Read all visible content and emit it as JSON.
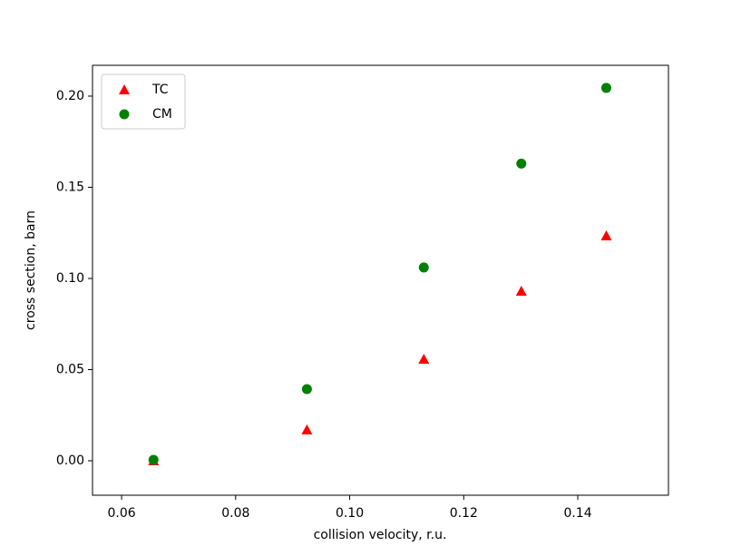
{
  "chart_data": {
    "type": "scatter",
    "x_label": "collision velocity, r.u.",
    "y_label": "cross section, barn",
    "xlim": [
      0.0549,
      0.1559
    ],
    "ylim": [
      -0.0189,
      0.2169
    ],
    "xticks": [
      0.06,
      0.08,
      {
        "value": 0.1,
        "label": "0.10"
      },
      0.12,
      0.14
    ],
    "yticks": [
      {
        "value": 0,
        "label": "0.00"
      },
      0.05,
      {
        "value": 0.1,
        "label": "0.10"
      },
      0.15,
      {
        "value": 0.2,
        "label": "0.20"
      }
    ],
    "legend": "upper left",
    "series": [
      {
        "name": "TC",
        "color": "#ff0000",
        "marker": "triangle",
        "x": [
          0.0656,
          0.0925,
          0.113,
          0.1301,
          0.145
        ],
        "values": [
          0.0,
          0.017,
          0.0557,
          0.093,
          0.1234
        ]
      },
      {
        "name": "CM",
        "color": "#008000",
        "marker": "circle",
        "x": [
          0.0656,
          0.0925,
          0.113,
          0.1301,
          0.145
        ],
        "values": [
          0.0005,
          0.0393,
          0.106,
          0.163,
          0.2045
        ]
      }
    ]
  }
}
